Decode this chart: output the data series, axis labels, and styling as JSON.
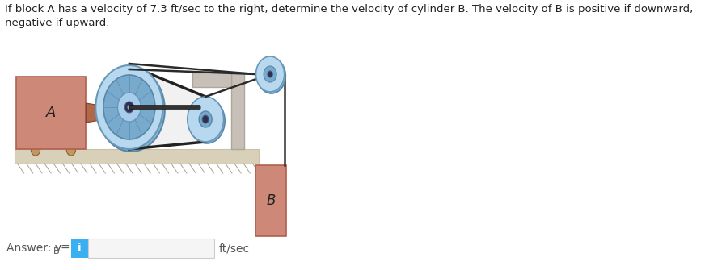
{
  "title_text": "If block A has a velocity of 7.3 ft/sec to the right, determine the velocity of cylinder B. The velocity of B is positive if downward,\nnegative if upward.",
  "title_fontsize": 9.5,
  "bg_color": "#ffffff",
  "block_A_color": "#cd8877",
  "block_A_edge": "#b06050",
  "block_B_color": "#cd8877",
  "block_B_edge": "#b06050",
  "pulley_rim_color": "#90c0df",
  "pulley_face_color": "#b8d8f0",
  "pulley_inner_color": "#70a8cc",
  "pulley_hub_color": "#303050",
  "ground_color": "#e0d8c8",
  "ground_edge": "#c8c0a8",
  "floor_color": "#d8d0b8",
  "rope_color": "#2a2a2a",
  "axle_color": "#704838",
  "bracket_color": "#c8c0b8",
  "answer_box_color": "#3ab0f0",
  "ans_text_color": "#555555",
  "info_label": "i",
  "ft_sec_label": "ft/sec"
}
